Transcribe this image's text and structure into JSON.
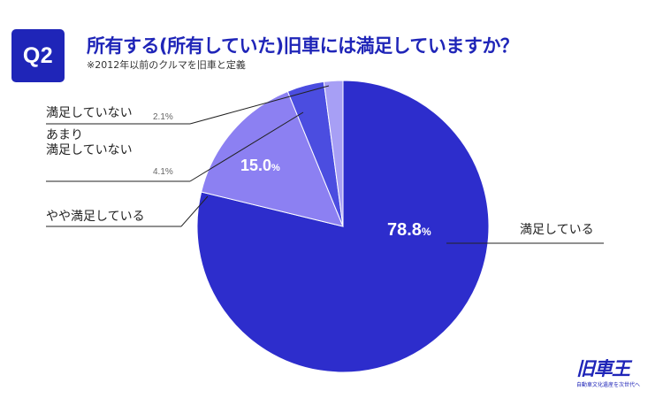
{
  "header": {
    "badge": "Q2",
    "title": "所有する(所有していた)旧車には満足していますか？",
    "subtitle": "※2012年以前のクルマを旧車と定義"
  },
  "colors": {
    "accent": "#1f25b8",
    "pie": [
      "#2d2dcc",
      "#8c80f2",
      "#4b4de0",
      "#a79ff5"
    ]
  },
  "chart_data": {
    "type": "pie",
    "start": "12 o'clock, clockwise",
    "slices": [
      {
        "label": "満足している",
        "value": 78.8,
        "value_text": "78.8",
        "unit": "%",
        "color": "#2d2dcc"
      },
      {
        "label": "やや満足している",
        "value": 15.0,
        "value_text": "15.0",
        "unit": "%",
        "color": "#8c80f2"
      },
      {
        "label": "あまり\n満足していない",
        "value": 4.1,
        "value_text": "4.1",
        "unit": "%",
        "color": "#4b4de0"
      },
      {
        "label": "満足していない",
        "value": 2.1,
        "value_text": "2.1",
        "unit": "%",
        "color": "#a79ff5"
      }
    ]
  },
  "logo": {
    "name": "旧車王",
    "tagline": "自動車文化遺産を次世代へ"
  }
}
